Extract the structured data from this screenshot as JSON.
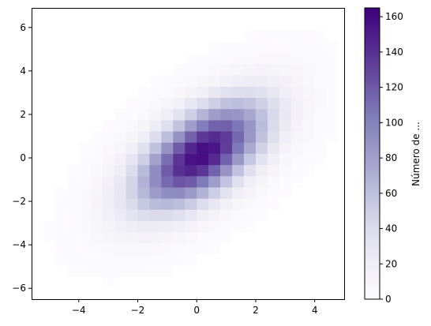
{
  "chart_data": {
    "type": "heatmap",
    "title": "",
    "xlabel": "",
    "ylabel": "",
    "xlim": [
      -5.6,
      5.0
    ],
    "ylim": [
      -6.5,
      6.9
    ],
    "xticks": [
      -4,
      -2,
      0,
      2,
      4
    ],
    "yticks": [
      -6,
      -4,
      -2,
      0,
      2,
      4,
      6
    ],
    "x_tick_labels": [
      "−4",
      "−2",
      "0",
      "2",
      "4"
    ],
    "y_tick_labels": [
      "−6",
      "−4",
      "−2",
      "0",
      "2",
      "4",
      "6"
    ],
    "bins": {
      "x_start": -5.6,
      "x_width": 0.4,
      "x_count": 26,
      "y_start": -6.5,
      "y_height": 0.515,
      "y_count": 26
    },
    "distribution": {
      "center_x": 0.15,
      "center_y": 0.15,
      "var_x": 2.25,
      "var_y": 2.89,
      "cov_xy": 1.5,
      "peak_count": 160
    },
    "grid": false,
    "colorbar": {
      "label": "Número de ...",
      "min": 0,
      "max": 165,
      "ticks": [
        0,
        20,
        40,
        60,
        80,
        100,
        120,
        140,
        160
      ],
      "tick_labels": [
        "0",
        "20",
        "40",
        "60",
        "80",
        "100",
        "120",
        "140",
        "160"
      ],
      "colormap": "Purples",
      "color_low": "#fcfbfd",
      "color_high": "#3f007d"
    }
  }
}
